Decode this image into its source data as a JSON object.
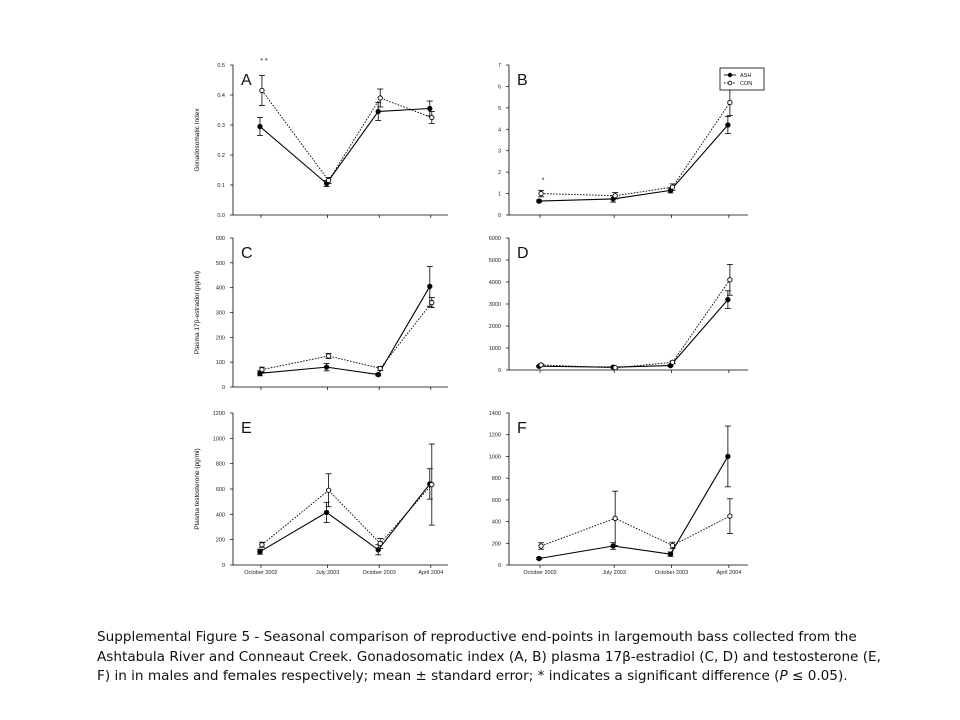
{
  "caption": {
    "pre": "Supplemental Figure 5 - Seasonal comparison of reproductive end-points in largemouth bass collected from the Ashtabula River and Conneaut Creek. Gonadosomatic index (A, B) plasma 17β-estradiol (C, D) and testosterone (E, F) in in males and females respectively; mean ± standard error; * indicates a significant difference (",
    "p": "P",
    "post": " ≤ 0.05)."
  },
  "chart_data": [
    {
      "panel": "A",
      "type": "line",
      "ylabel": "Gonadosomatic Index",
      "ylim": [
        0,
        0.5
      ],
      "yticks": [
        "0.0",
        "0.1",
        "0.2",
        "0.3",
        "0.4",
        "0.5"
      ],
      "categories": [
        "October 2002",
        "July 2003",
        "October 2003",
        "April 2004"
      ],
      "annotation": "* *",
      "series": [
        {
          "marker": "filled",
          "values": [
            0.295,
            0.105,
            0.345,
            0.355
          ],
          "errors": [
            0.03,
            0.01,
            0.03,
            0.025
          ]
        },
        {
          "marker": "open",
          "values": [
            0.415,
            0.115,
            0.39,
            0.325
          ],
          "errors": [
            0.05,
            0.01,
            0.03,
            0.02
          ]
        }
      ]
    },
    {
      "panel": "B",
      "type": "line",
      "ylabel": "",
      "ylim": [
        0,
        7
      ],
      "yticks": [
        "0",
        "1",
        "2",
        "3",
        "4",
        "5",
        "6",
        "7"
      ],
      "categories": [
        "October 2002",
        "July 2003",
        "October 2003",
        "April 2004"
      ],
      "annotation": "*",
      "legend": [
        "ASH",
        "CON"
      ],
      "series": [
        {
          "name": "ASH",
          "marker": "filled",
          "values": [
            0.65,
            0.75,
            1.15,
            4.2
          ],
          "errors": [
            0.05,
            0.15,
            0.12,
            0.4
          ]
        },
        {
          "name": "CON",
          "marker": "open",
          "values": [
            1.0,
            0.9,
            1.3,
            5.25
          ],
          "errors": [
            0.15,
            0.15,
            0.15,
            0.6
          ]
        }
      ]
    },
    {
      "panel": "C",
      "type": "line",
      "ylabel": "Plasma 17β-estradiol (pg/ml)",
      "ylim": [
        0,
        600
      ],
      "yticks": [
        "0",
        "100",
        "200",
        "300",
        "400",
        "500",
        "600"
      ],
      "categories": [
        "October 2002",
        "July 2003",
        "October 2003",
        "April 2004"
      ],
      "series": [
        {
          "marker": "filled",
          "values": [
            55,
            80,
            50,
            405
          ],
          "errors": [
            10,
            15,
            5,
            80
          ]
        },
        {
          "marker": "open",
          "values": [
            70,
            125,
            75,
            340
          ],
          "errors": [
            10,
            10,
            8,
            20
          ]
        }
      ]
    },
    {
      "panel": "D",
      "type": "line",
      "ylabel": "",
      "ylim": [
        0,
        6000
      ],
      "yticks": [
        "0",
        "1000",
        "2000",
        "3000",
        "4000",
        "5000",
        "6000"
      ],
      "categories": [
        "October 2002",
        "July 2003",
        "October 2003",
        "April 2004"
      ],
      "series": [
        {
          "marker": "filled",
          "values": [
            170,
            130,
            200,
            3200
          ],
          "errors": [
            30,
            30,
            40,
            400
          ]
        },
        {
          "marker": "open",
          "values": [
            230,
            100,
            350,
            4100
          ],
          "errors": [
            40,
            30,
            60,
            700
          ]
        }
      ]
    },
    {
      "panel": "E",
      "type": "line",
      "ylabel": "Plasma testosterone (pg/ml)",
      "ylim": [
        0,
        1200
      ],
      "yticks": [
        "0",
        "200",
        "400",
        "600",
        "800",
        "1000",
        "1200"
      ],
      "categories": [
        "October 2002",
        "July 2003",
        "October 2003",
        "April 2004"
      ],
      "xticklabels": [
        "October 2002",
        "July 2003",
        "October 2003",
        "April 2004"
      ],
      "series": [
        {
          "marker": "filled",
          "values": [
            105,
            415,
            120,
            640
          ],
          "errors": [
            20,
            80,
            40,
            120
          ]
        },
        {
          "marker": "open",
          "values": [
            160,
            590,
            170,
            635
          ],
          "errors": [
            20,
            130,
            40,
            320
          ]
        }
      ]
    },
    {
      "panel": "F",
      "type": "line",
      "ylabel": "",
      "ylim": [
        0,
        1400
      ],
      "yticks": [
        "0",
        "200",
        "400",
        "600",
        "800",
        "1000",
        "1200",
        "1400"
      ],
      "categories": [
        "October 2002",
        "July 2003",
        "October 2003",
        "April 2004"
      ],
      "xticklabels": [
        "October 2002",
        "July 2003",
        "October 2003",
        "April 2004"
      ],
      "series": [
        {
          "marker": "filled",
          "values": [
            60,
            175,
            100,
            1000
          ],
          "errors": [
            10,
            30,
            20,
            280
          ]
        },
        {
          "marker": "open",
          "values": [
            175,
            430,
            180,
            450
          ],
          "errors": [
            30,
            250,
            30,
            160
          ]
        }
      ]
    }
  ]
}
